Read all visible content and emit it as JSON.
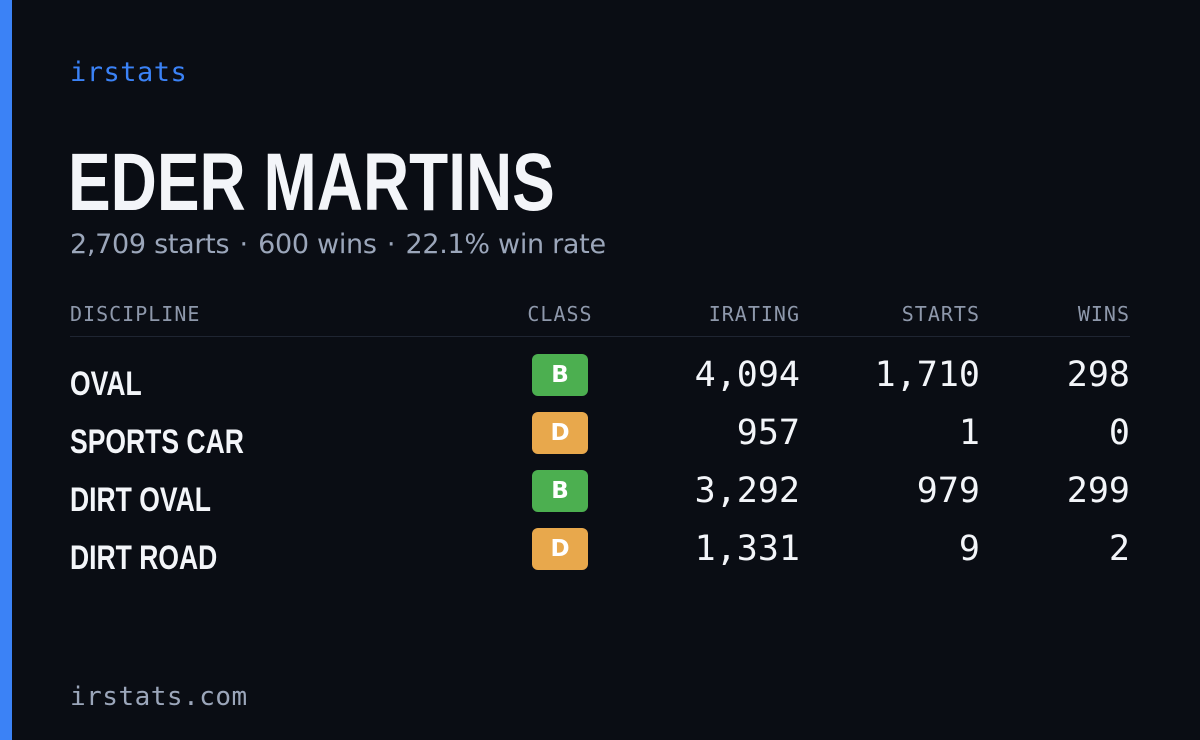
{
  "theme": {
    "accent": "#3b82f6",
    "background": "#0a0d14",
    "class_colors": {
      "B": "#4caf50",
      "D": "#e8a84c"
    }
  },
  "header": {
    "brand": "irstats"
  },
  "driver": {
    "name": "EDER MARTINS",
    "starts_text": "2,709 starts",
    "wins_text": "600 wins",
    "win_rate_text": "22.1% win rate",
    "separator": "·"
  },
  "table": {
    "columns": {
      "discipline": "DISCIPLINE",
      "class": "CLASS",
      "irating": "IRATING",
      "starts": "STARTS",
      "wins": "WINS"
    },
    "rows": [
      {
        "discipline": "OVAL",
        "class": "B",
        "irating": "4,094",
        "starts": "1,710",
        "wins": "298"
      },
      {
        "discipline": "SPORTS CAR",
        "class": "D",
        "irating": "957",
        "starts": "1",
        "wins": "0"
      },
      {
        "discipline": "DIRT OVAL",
        "class": "B",
        "irating": "3,292",
        "starts": "979",
        "wins": "299"
      },
      {
        "discipline": "DIRT ROAD",
        "class": "D",
        "irating": "1,331",
        "starts": "9",
        "wins": "2"
      }
    ]
  },
  "footer": {
    "site": "irstats.com"
  }
}
